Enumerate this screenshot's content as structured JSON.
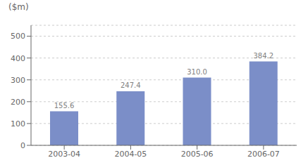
{
  "chart_data": {
    "type": "bar",
    "ylabel": "($m)",
    "categories": [
      "2003-04",
      "2004-05",
      "2005-06",
      "2006-07"
    ],
    "values": [
      155.6,
      247.4,
      310.0,
      384.2
    ],
    "value_labels": [
      "155.6",
      "247.4",
      "310.0",
      "384.2"
    ],
    "data_labels": true,
    "color": "#7b8ec8",
    "ylim": [
      0,
      550
    ],
    "yticks": [
      0,
      100,
      200,
      300,
      400,
      500
    ],
    "grid": true
  }
}
